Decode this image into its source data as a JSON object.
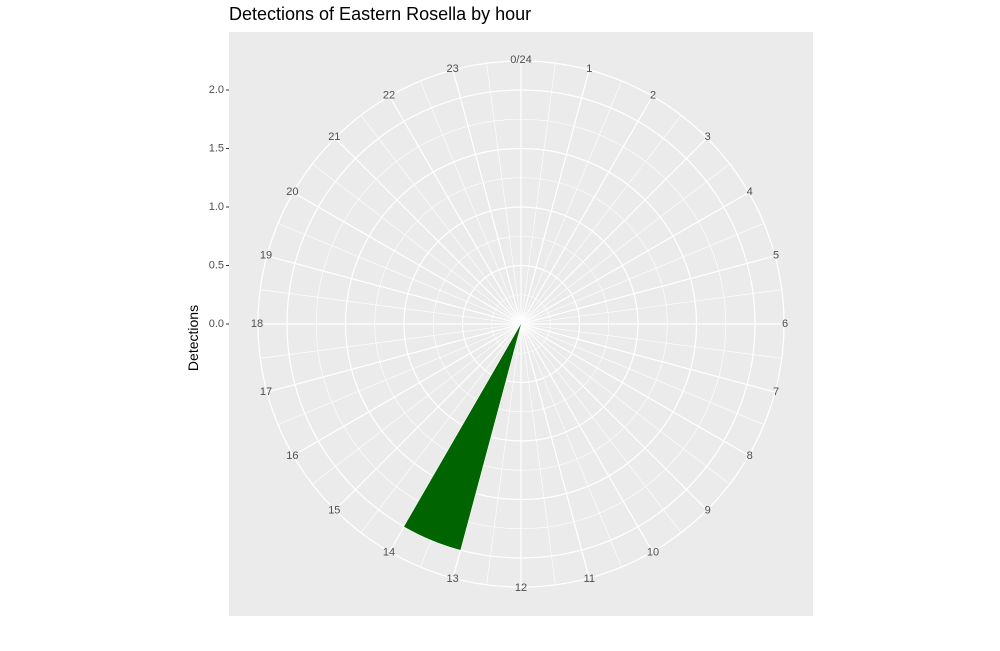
{
  "chart_data": {
    "type": "bar",
    "coord": "polar",
    "title": "Detections of Eastern Rosella by hour",
    "xlabel": "",
    "ylabel": "Detections",
    "categories": [
      "0/24",
      "1",
      "2",
      "3",
      "4",
      "5",
      "6",
      "7",
      "8",
      "9",
      "10",
      "11",
      "12",
      "13",
      "14",
      "15",
      "16",
      "17",
      "18",
      "19",
      "20",
      "21",
      "22",
      "23"
    ],
    "x_hour_start": 13,
    "x_hour_end": 14,
    "values": [
      0,
      0,
      0,
      0,
      0,
      0,
      0,
      0,
      0,
      0,
      0,
      0,
      0,
      2.0,
      0,
      0,
      0,
      0,
      0,
      0,
      0,
      0,
      0,
      0
    ],
    "ylim": [
      0,
      2.0
    ],
    "yticks": [
      "0.0",
      "0.5",
      "1.0",
      "1.5",
      "2.0"
    ],
    "ytick_values": [
      0,
      0.5,
      1.0,
      1.5,
      2.0
    ],
    "grid": true,
    "legend": "none",
    "bar_color": "#006400",
    "panel_color": "#ebebeb",
    "grid_color": "#ffffff"
  }
}
